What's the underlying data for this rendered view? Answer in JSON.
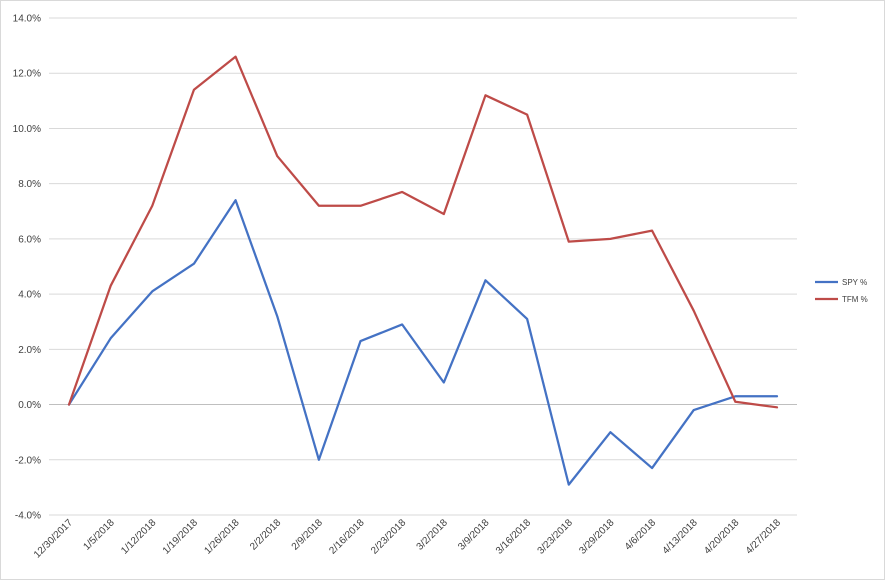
{
  "chart_data": {
    "type": "line",
    "title": "",
    "xlabel": "",
    "ylabel": "",
    "ylim": [
      -4.0,
      14.0
    ],
    "ystep": 2.0,
    "y_tick_format": "percent_1dp",
    "grid": true,
    "legend_position": "right",
    "categories": [
      "12/30/2017",
      "1/5/2018",
      "1/12/2018",
      "1/19/2018",
      "1/26/2018",
      "2/2/2018",
      "2/9/2018",
      "2/16/2018",
      "2/23/2018",
      "3/2/2018",
      "3/9/2018",
      "3/16/2018",
      "3/23/2018",
      "3/29/2018",
      "4/6/2018",
      "4/13/2018",
      "4/20/2018",
      "4/27/2018"
    ],
    "series": [
      {
        "name": "SPY %",
        "color": "#4472c4",
        "values": [
          0.0,
          2.4,
          4.1,
          5.1,
          7.4,
          3.2,
          -2.0,
          2.3,
          2.9,
          0.8,
          4.5,
          3.1,
          -2.9,
          -1.0,
          -2.3,
          -0.2,
          0.3,
          0.3
        ]
      },
      {
        "name": "TFM %",
        "color": "#be4b48",
        "values": [
          0.0,
          4.3,
          7.2,
          11.4,
          12.6,
          9.0,
          7.2,
          7.2,
          7.7,
          6.9,
          11.2,
          10.5,
          5.9,
          6.0,
          6.3,
          3.4,
          0.1,
          -0.1
        ]
      }
    ]
  }
}
